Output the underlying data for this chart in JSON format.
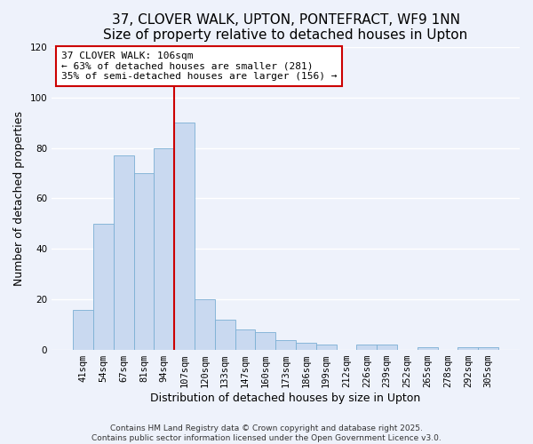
{
  "title": "37, CLOVER WALK, UPTON, PONTEFRACT, WF9 1NN",
  "subtitle": "Size of property relative to detached houses in Upton",
  "xlabel": "Distribution of detached houses by size in Upton",
  "ylabel": "Number of detached properties",
  "bar_labels": [
    "41sqm",
    "54sqm",
    "67sqm",
    "81sqm",
    "94sqm",
    "107sqm",
    "120sqm",
    "133sqm",
    "147sqm",
    "160sqm",
    "173sqm",
    "186sqm",
    "199sqm",
    "212sqm",
    "226sqm",
    "239sqm",
    "252sqm",
    "265sqm",
    "278sqm",
    "292sqm",
    "305sqm"
  ],
  "bar_values": [
    16,
    50,
    77,
    70,
    80,
    90,
    20,
    12,
    8,
    7,
    4,
    3,
    2,
    0,
    2,
    2,
    0,
    1,
    0,
    1,
    1
  ],
  "bar_color": "#c9d9f0",
  "bar_edge_color": "#7bafd4",
  "vline_x_index": 5,
  "vline_color": "#cc0000",
  "annotation_title": "37 CLOVER WALK: 106sqm",
  "annotation_line1": "← 63% of detached houses are smaller (281)",
  "annotation_line2": "35% of semi-detached houses are larger (156) →",
  "annotation_box_color": "#ffffff",
  "annotation_box_edge": "#cc0000",
  "ylim": [
    0,
    120
  ],
  "yticks": [
    0,
    20,
    40,
    60,
    80,
    100,
    120
  ],
  "footer1": "Contains HM Land Registry data © Crown copyright and database right 2025.",
  "footer2": "Contains public sector information licensed under the Open Government Licence v3.0.",
  "background_color": "#eef2fb",
  "grid_color": "#ffffff",
  "title_fontsize": 11,
  "axis_label_fontsize": 9,
  "tick_fontsize": 7.5,
  "annotation_fontsize": 8,
  "footer_fontsize": 6.5
}
